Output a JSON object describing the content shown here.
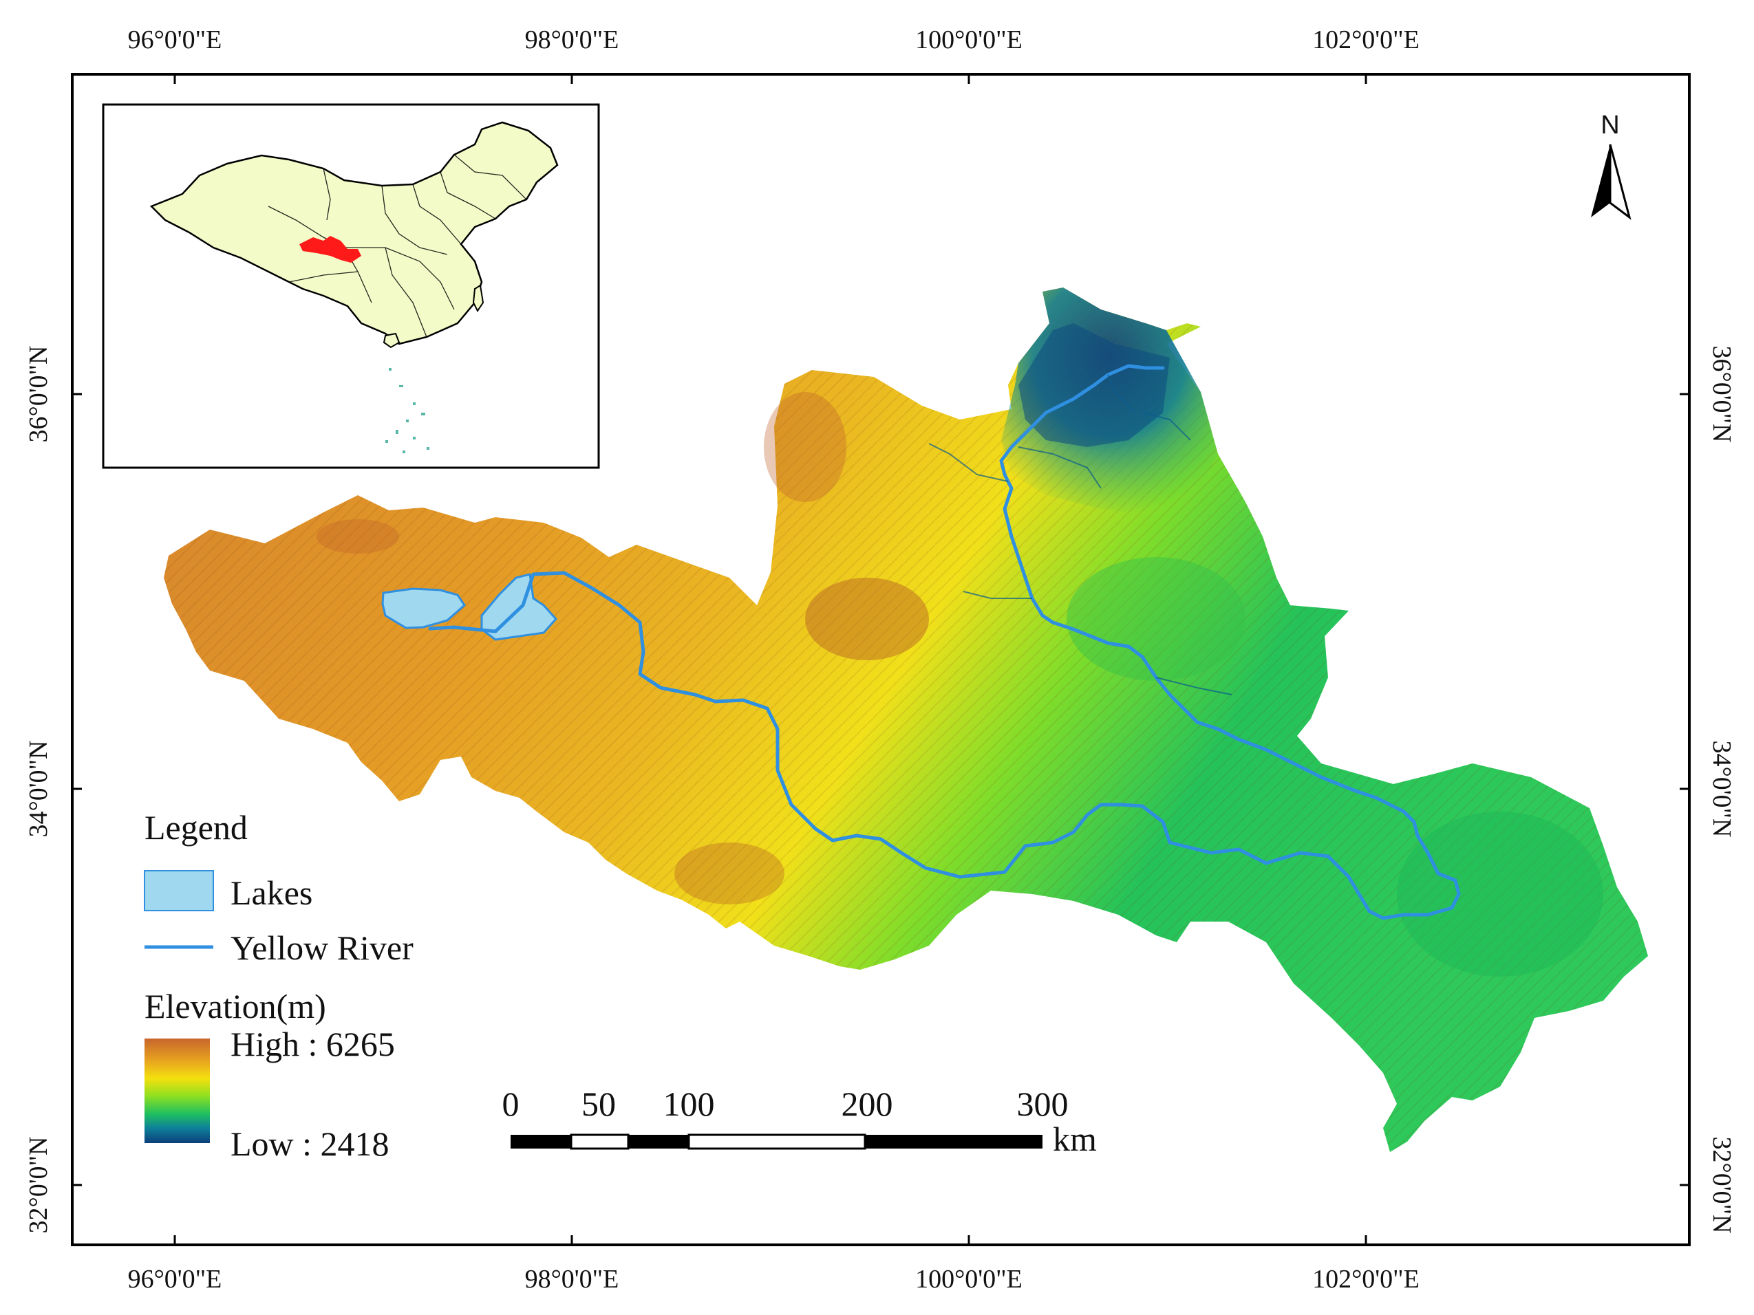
{
  "map": {
    "top_longitudes": [
      "96°0'0\"E",
      "98°0'0\"E",
      "100°0'0\"E",
      "102°0'0\"E"
    ],
    "bottom_longitudes": [
      "96°0'0\"E",
      "98°0'0\"E",
      "100°0'0\"E",
      "102°0'0\"E"
    ],
    "left_latitudes": [
      "36°0'0\"N",
      "34°0'0\"N",
      "32°0'0\"N"
    ],
    "right_latitudes": [
      "36°0'0\"N",
      "34°0'0\"N",
      "32°0'0\"N"
    ],
    "north_label": "N",
    "north_icon": "north-arrow-icon"
  },
  "legend": {
    "title": "Legend",
    "lakes_label": "Lakes",
    "river_label": "Yellow River",
    "elevation_title": "Elevation(m)",
    "high_label": "High : 6265",
    "low_label": "Low : 2418",
    "lakes_color": "#a0d8ef",
    "river_color": "#2f8fe0",
    "ramp_colors": [
      "#c8662c",
      "#e6a020",
      "#f4e00e",
      "#8fe020",
      "#1fc060",
      "#0e7f9a",
      "#0b3e7a"
    ]
  },
  "scale_bar": {
    "ticks": [
      "0",
      "50",
      "100",
      "200",
      "300"
    ],
    "unit": "km"
  },
  "inset": {
    "country_fill": "#f3fbc8",
    "highlight_fill": "#ff1a1a"
  }
}
